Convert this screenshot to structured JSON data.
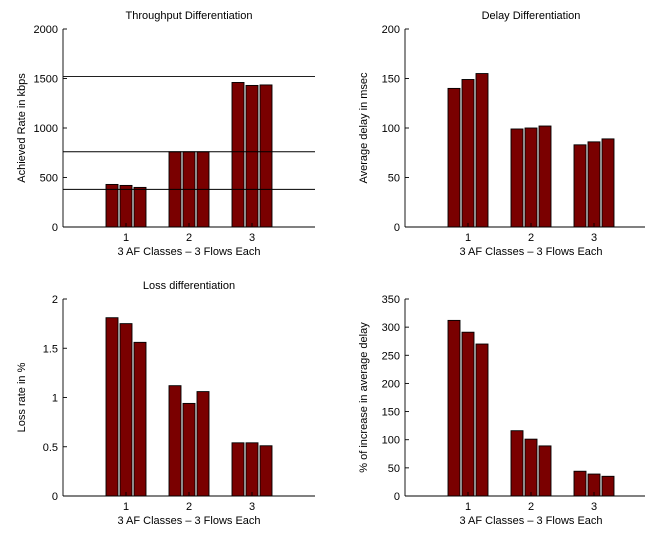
{
  "colors": {
    "bar": "#7a0000",
    "axis": "#000000",
    "background": "#ffffff"
  },
  "chart_data": [
    {
      "type": "bar",
      "title": "Throughput Differentiation",
      "xlabel": "3 AF Classes – 3 Flows Each",
      "ylabel": "Achieved Rate in kbps",
      "categories": [
        "1",
        "2",
        "3"
      ],
      "series": [
        {
          "values": [
            430,
            760,
            1460
          ]
        },
        {
          "values": [
            420,
            760,
            1430
          ]
        },
        {
          "values": [
            400,
            760,
            1435
          ]
        }
      ],
      "reference_lines": [
        1520,
        760,
        380
      ],
      "ylim": [
        0,
        2000
      ],
      "yticks": [
        0,
        500,
        1000,
        1500,
        2000
      ],
      "ytick_labels": [
        "0",
        "500",
        "1000",
        "1500",
        "2000"
      ],
      "grid": false
    },
    {
      "type": "bar",
      "title": "Delay Differentiation",
      "xlabel": "3 AF Classes – 3 Flows Each",
      "ylabel": "Average delay in msec",
      "categories": [
        "1",
        "2",
        "3"
      ],
      "series": [
        {
          "values": [
            140,
            99,
            83
          ]
        },
        {
          "values": [
            149,
            100,
            86
          ]
        },
        {
          "values": [
            155,
            102,
            89
          ]
        }
      ],
      "ylim": [
        0,
        200
      ],
      "yticks": [
        0,
        50,
        100,
        150,
        200
      ],
      "ytick_labels": [
        "0",
        "50",
        "100",
        "150",
        "200"
      ],
      "grid": false
    },
    {
      "type": "bar",
      "title": "Loss differentiation",
      "xlabel": "3 AF Classes – 3 Flows Each",
      "ylabel": "Loss rate in %",
      "categories": [
        "1",
        "2",
        "3"
      ],
      "series": [
        {
          "values": [
            1.81,
            1.12,
            0.54
          ]
        },
        {
          "values": [
            1.75,
            0.94,
            0.54
          ]
        },
        {
          "values": [
            1.56,
            1.06,
            0.51
          ]
        }
      ],
      "ylim": [
        0,
        2
      ],
      "yticks": [
        0,
        0.5,
        1,
        1.5,
        2
      ],
      "ytick_labels": [
        "0",
        "0.5",
        "1",
        "1.5",
        "2"
      ],
      "grid": false
    },
    {
      "type": "bar",
      "title": "",
      "xlabel": "3 AF Classes – 3 Flows Each",
      "ylabel": "% of increase in average delay",
      "categories": [
        "1",
        "2",
        "3"
      ],
      "series": [
        {
          "values": [
            312,
            116,
            44
          ]
        },
        {
          "values": [
            291,
            101,
            39
          ]
        },
        {
          "values": [
            270,
            89,
            35
          ]
        }
      ],
      "ylim": [
        0,
        350
      ],
      "yticks": [
        0,
        50,
        100,
        150,
        200,
        250,
        300,
        350
      ],
      "ytick_labels": [
        "0",
        "50",
        "100",
        "150",
        "200",
        "250",
        "300",
        "350"
      ],
      "grid": false
    }
  ]
}
